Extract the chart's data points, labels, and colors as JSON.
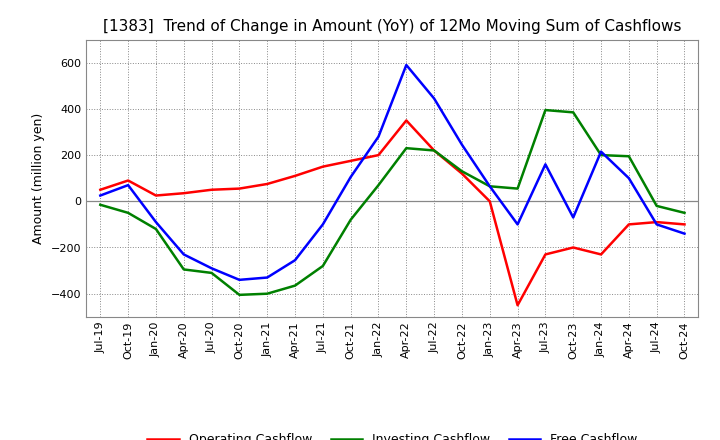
{
  "title": "[1383]  Trend of Change in Amount (YoY) of 12Mo Moving Sum of Cashflows",
  "ylabel": "Amount (million yen)",
  "x_labels": [
    "Jul-19",
    "Oct-19",
    "Jan-20",
    "Apr-20",
    "Jul-20",
    "Oct-20",
    "Jan-21",
    "Apr-21",
    "Jul-21",
    "Oct-21",
    "Jan-22",
    "Apr-22",
    "Jul-22",
    "Oct-22",
    "Jan-23",
    "Apr-23",
    "Jul-23",
    "Oct-23",
    "Jan-24",
    "Apr-24",
    "Jul-24",
    "Oct-24"
  ],
  "operating": [
    50,
    90,
    25,
    35,
    50,
    55,
    75,
    110,
    150,
    175,
    200,
    350,
    220,
    120,
    0,
    -450,
    -230,
    -200,
    -230,
    -100,
    -90,
    -100
  ],
  "investing": [
    -15,
    -50,
    -120,
    -295,
    -310,
    -405,
    -400,
    -365,
    -280,
    -80,
    70,
    230,
    220,
    130,
    65,
    55,
    395,
    385,
    200,
    195,
    -20,
    -50
  ],
  "free": [
    25,
    70,
    -90,
    -230,
    -290,
    -340,
    -330,
    -255,
    -100,
    105,
    280,
    590,
    445,
    245,
    65,
    -100,
    160,
    -70,
    215,
    100,
    -100,
    -140
  ],
  "ylim": [
    -500,
    700
  ],
  "yticks": [
    -400,
    -200,
    0,
    200,
    400,
    600
  ],
  "operating_color": "#ff0000",
  "investing_color": "#008000",
  "free_color": "#0000ff",
  "background_color": "#ffffff",
  "grid_color": "#888888",
  "zero_line_color": "#888888",
  "spine_color": "#888888",
  "title_fontsize": 11,
  "tick_fontsize": 8,
  "ylabel_fontsize": 9,
  "legend_labels": [
    "Operating Cashflow",
    "Investing Cashflow",
    "Free Cashflow"
  ],
  "legend_fontsize": 9,
  "line_width": 1.8
}
